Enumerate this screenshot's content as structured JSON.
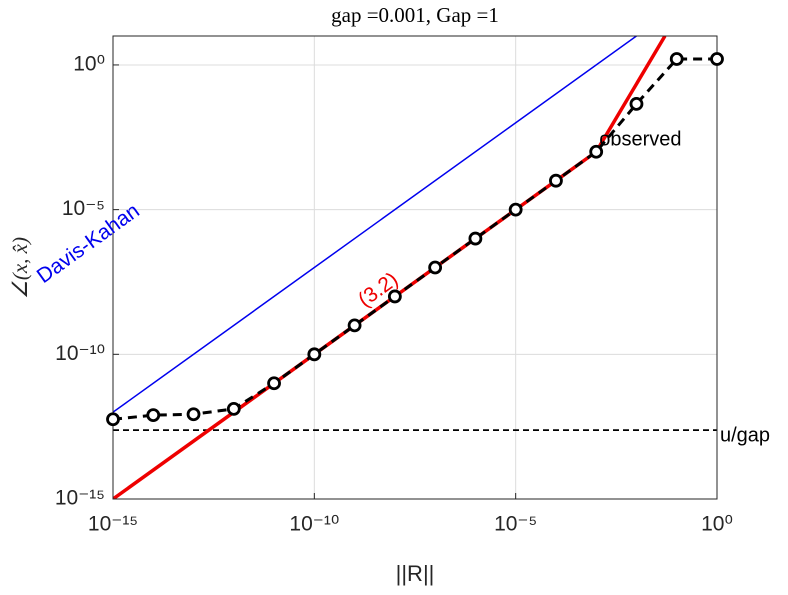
{
  "chart_data": {
    "type": "line",
    "title": "gap =0.001,  Gap =1",
    "x_label": "||R||",
    "y_label": "∠(x, x̂)",
    "log_x": true,
    "log_y": true,
    "grid": true,
    "xlim": [
      1e-15,
      1
    ],
    "ylim": [
      1e-15,
      10
    ],
    "xticks": [
      {
        "value": 1e-15,
        "label": "10⁻¹⁵"
      },
      {
        "value": 1e-10,
        "label": "10⁻¹⁰"
      },
      {
        "value": 1e-05,
        "label": "10⁻⁵"
      },
      {
        "value": 1,
        "label": "10⁰"
      }
    ],
    "yticks": [
      {
        "value": 1e-15,
        "label": "10⁻¹⁵"
      },
      {
        "value": 1e-10,
        "label": "10⁻¹⁰"
      },
      {
        "value": 1e-05,
        "label": "10⁻⁵"
      },
      {
        "value": 1,
        "label": "10⁰"
      }
    ],
    "series": [
      {
        "name": "Davis-Kahan",
        "color": "#0000ee",
        "dashed": false,
        "markers": false,
        "width": 1.5,
        "x": [
          1e-15,
          0.01
        ],
        "y": [
          1e-12,
          10
        ]
      },
      {
        "name": "(3.2)",
        "color": "#ee0000",
        "dashed": false,
        "markers": false,
        "width": 3.5,
        "x": [
          1e-15,
          0.0001,
          0.001,
          0.051
        ],
        "y": [
          1e-15,
          0.0001,
          0.001,
          10
        ]
      },
      {
        "name": "observed",
        "color": "#000000",
        "dashed": true,
        "markers": true,
        "width": 3,
        "x": [
          1e-15,
          1e-14,
          1e-13,
          1e-12,
          1e-11,
          1e-10,
          1e-09,
          1e-08,
          1e-07,
          1e-06,
          1e-05,
          0.0001,
          0.001,
          0.01,
          0.1,
          1
        ],
        "y": [
          5.7e-13,
          7.9e-13,
          8.5e-13,
          1.3e-12,
          1e-11,
          1e-10,
          1e-09,
          1e-08,
          1e-07,
          1e-06,
          1e-05,
          0.0001,
          0.001,
          0.045,
          1.6,
          1.6
        ]
      }
    ],
    "hlines": [
      {
        "name": "u/gap",
        "value": 2.4e-13,
        "color": "#000000"
      }
    ]
  }
}
